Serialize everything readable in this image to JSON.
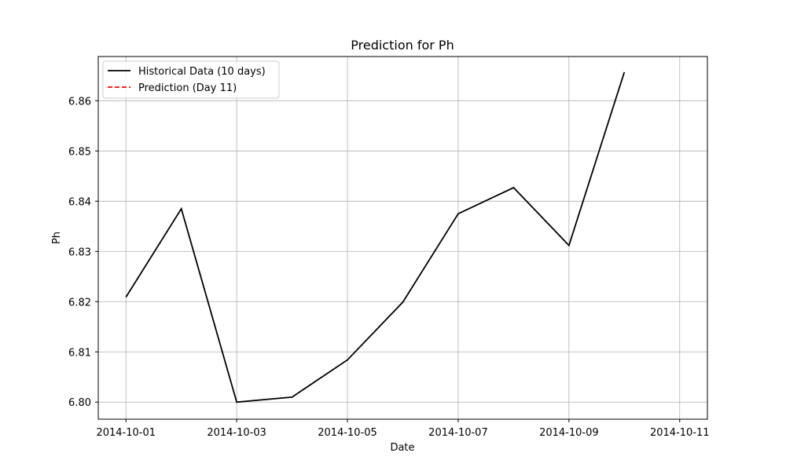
{
  "chart_data": {
    "type": "line",
    "title": "Prediction for Ph",
    "xlabel": "Date",
    "ylabel": "Ph",
    "x_ticks": [
      "2014-10-01",
      "2014-10-03",
      "2014-10-05",
      "2014-10-07",
      "2014-10-09",
      "2014-10-11"
    ],
    "y_ticks": [
      "6.80",
      "6.81",
      "6.82",
      "6.83",
      "6.84",
      "6.85",
      "6.86"
    ],
    "xlim": [
      "2014-09-30T12:00",
      "2014-10-11T12:00"
    ],
    "ylim": [
      6.7966,
      6.8688
    ],
    "grid": true,
    "legend_position": "top-left",
    "series": [
      {
        "name": "Historical Data (10 days)",
        "color": "#000000",
        "style": "solid",
        "x": [
          "2014-10-01",
          "2014-10-02",
          "2014-10-03",
          "2014-10-04",
          "2014-10-05",
          "2014-10-06",
          "2014-10-07",
          "2014-10-08",
          "2014-10-09",
          "2014-10-10"
        ],
        "y": [
          6.8209,
          6.8385,
          6.8,
          6.801,
          6.8084,
          6.8199,
          6.8375,
          6.8427,
          6.8312,
          6.8657
        ]
      },
      {
        "name": "Prediction (Day 11)",
        "color": "#ff0000",
        "style": "dashed",
        "x": [],
        "y": []
      }
    ]
  }
}
